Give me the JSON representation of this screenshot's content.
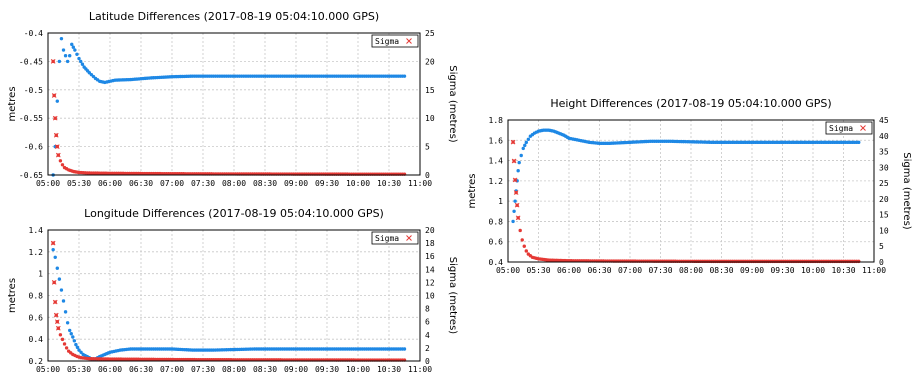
{
  "chart_data": [
    {
      "id": "latitude",
      "type": "scatter",
      "title": "Latitude Differences (2017-08-19 05:04:10.000 GPS)",
      "ylabel": "metres",
      "y2label": "Sigma (metres)",
      "legend": "Sigma",
      "legend_position": "top-right",
      "grid": true,
      "x_ticks": [
        "05:00",
        "05:30",
        "06:00",
        "06:30",
        "07:00",
        "07:30",
        "08:00",
        "08:30",
        "09:00",
        "09:30",
        "10:00",
        "10:30",
        "11:00"
      ],
      "xlim": [
        0,
        360
      ],
      "ylim": [
        -0.65,
        -0.4
      ],
      "y_ticks": [
        "-0.4",
        "-0.45",
        "-0.5",
        "-0.55",
        "-0.6",
        "-0.65"
      ],
      "y2lim": [
        0,
        25
      ],
      "y2_ticks": [
        "25",
        "20",
        "15",
        "10",
        "5",
        "0"
      ],
      "series": [
        {
          "color": "#1e88e5",
          "axis": "left",
          "points": [
            [
              5,
              -0.65
            ],
            [
              7,
              -0.6
            ],
            [
              9,
              -0.52
            ],
            [
              11,
              -0.45
            ],
            [
              13,
              -0.41
            ],
            [
              15,
              -0.43
            ],
            [
              17,
              -0.44
            ],
            [
              19,
              -0.45
            ],
            [
              21,
              -0.44
            ],
            [
              23,
              -0.42
            ],
            [
              26,
              -0.43
            ],
            [
              30,
              -0.445
            ],
            [
              35,
              -0.46
            ],
            [
              40,
              -0.47
            ],
            [
              46,
              -0.48
            ],
            [
              50,
              -0.485
            ],
            [
              55,
              -0.487
            ],
            [
              65,
              -0.483
            ],
            [
              80,
              -0.482
            ],
            [
              100,
              -0.479
            ],
            [
              120,
              -0.477
            ],
            [
              140,
              -0.476
            ],
            [
              160,
              -0.476
            ],
            [
              200,
              -0.476
            ],
            [
              250,
              -0.476
            ],
            [
              300,
              -0.476
            ],
            [
              345,
              -0.476
            ]
          ]
        },
        {
          "color": "#e53935",
          "axis": "right",
          "points": [
            [
              5,
              20
            ],
            [
              6,
              14
            ],
            [
              7,
              10
            ],
            [
              8,
              7
            ],
            [
              9,
              5
            ],
            [
              10,
              3.5
            ],
            [
              12,
              2.5
            ],
            [
              14,
              1.8
            ],
            [
              16,
              1.3
            ],
            [
              20,
              0.9
            ],
            [
              25,
              0.6
            ],
            [
              30,
              0.45
            ],
            [
              40,
              0.35
            ],
            [
              60,
              0.3
            ],
            [
              100,
              0.25
            ],
            [
              150,
              0.2
            ],
            [
              200,
              0.18
            ],
            [
              250,
              0.16
            ],
            [
              300,
              0.15
            ],
            [
              345,
              0.15
            ]
          ]
        }
      ]
    },
    {
      "id": "longitude",
      "type": "scatter",
      "title": "Longitude Differences (2017-08-19 05:04:10.000 GPS)",
      "ylabel": "metres",
      "y2label": "Sigma (metres)",
      "legend": "Sigma",
      "legend_position": "top-right",
      "grid": true,
      "x_ticks": [
        "05:00",
        "05:30",
        "06:00",
        "06:30",
        "07:00",
        "07:30",
        "08:00",
        "08:30",
        "09:00",
        "09:30",
        "10:00",
        "10:30",
        "11:00"
      ],
      "xlim": [
        0,
        360
      ],
      "ylim": [
        0.2,
        1.4
      ],
      "y_ticks": [
        "1.4",
        "1.2",
        "1",
        "0.8",
        "0.6",
        "0.4",
        "0.2"
      ],
      "y2lim": [
        0,
        20
      ],
      "y2_ticks": [
        "20",
        "18",
        "16",
        "14",
        "12",
        "10",
        "8",
        "6",
        "4",
        "2",
        "0"
      ],
      "series": [
        {
          "color": "#1e88e5",
          "axis": "left",
          "points": [
            [
              5,
              1.22
            ],
            [
              7,
              1.15
            ],
            [
              9,
              1.05
            ],
            [
              11,
              0.95
            ],
            [
              13,
              0.85
            ],
            [
              15,
              0.75
            ],
            [
              17,
              0.65
            ],
            [
              19,
              0.55
            ],
            [
              21,
              0.48
            ],
            [
              24,
              0.42
            ],
            [
              27,
              0.35
            ],
            [
              30,
              0.3
            ],
            [
              34,
              0.26
            ],
            [
              38,
              0.24
            ],
            [
              42,
              0.22
            ],
            [
              46,
              0.22
            ],
            [
              50,
              0.24
            ],
            [
              55,
              0.26
            ],
            [
              60,
              0.28
            ],
            [
              70,
              0.3
            ],
            [
              80,
              0.31
            ],
            [
              100,
              0.31
            ],
            [
              120,
              0.31
            ],
            [
              140,
              0.3
            ],
            [
              160,
              0.3
            ],
            [
              200,
              0.31
            ],
            [
              250,
              0.31
            ],
            [
              300,
              0.31
            ],
            [
              345,
              0.31
            ]
          ]
        },
        {
          "color": "#e53935",
          "axis": "right",
          "points": [
            [
              5,
              18
            ],
            [
              6,
              12
            ],
            [
              7,
              9
            ],
            [
              8,
              7
            ],
            [
              9,
              6
            ],
            [
              10,
              5
            ],
            [
              12,
              4
            ],
            [
              14,
              3.3
            ],
            [
              16,
              2.6
            ],
            [
              18,
              2
            ],
            [
              20,
              1.5
            ],
            [
              24,
              1
            ],
            [
              28,
              0.7
            ],
            [
              32,
              0.5
            ],
            [
              40,
              0.35
            ],
            [
              60,
              0.3
            ],
            [
              100,
              0.25
            ],
            [
              150,
              0.2
            ],
            [
              200,
              0.18
            ],
            [
              250,
              0.16
            ],
            [
              300,
              0.15
            ],
            [
              345,
              0.15
            ]
          ]
        }
      ]
    },
    {
      "id": "height",
      "type": "scatter",
      "title": "Height Differences (2017-08-19 05:04:10.000 GPS)",
      "ylabel": "metres",
      "y2label": "Sigma (metres)",
      "legend": "Sigma",
      "legend_position": "top-right",
      "grid": true,
      "x_ticks": [
        "05:00",
        "05:30",
        "06:00",
        "06:30",
        "07:00",
        "07:30",
        "08:00",
        "08:30",
        "09:00",
        "09:30",
        "10:00",
        "10:30",
        "11:00"
      ],
      "xlim": [
        0,
        360
      ],
      "ylim": [
        0.4,
        1.8
      ],
      "y_ticks": [
        "1.8",
        "1.6",
        "1.4",
        "1.2",
        "1",
        "0.8",
        "0.6",
        "0.4"
      ],
      "y2lim": [
        0,
        45
      ],
      "y2_ticks": [
        "45",
        "40",
        "35",
        "30",
        "25",
        "20",
        "15",
        "10",
        "5",
        "0"
      ],
      "series": [
        {
          "color": "#1e88e5",
          "axis": "left",
          "points": [
            [
              5,
              0.8
            ],
            [
              6,
              0.9
            ],
            [
              7,
              1.0
            ],
            [
              8,
              1.1
            ],
            [
              9,
              1.2
            ],
            [
              10,
              1.3
            ],
            [
              11,
              1.38
            ],
            [
              13,
              1.45
            ],
            [
              15,
              1.52
            ],
            [
              18,
              1.58
            ],
            [
              22,
              1.64
            ],
            [
              26,
              1.67
            ],
            [
              30,
              1.69
            ],
            [
              35,
              1.7
            ],
            [
              40,
              1.7
            ],
            [
              45,
              1.69
            ],
            [
              50,
              1.67
            ],
            [
              55,
              1.65
            ],
            [
              60,
              1.62
            ],
            [
              70,
              1.6
            ],
            [
              80,
              1.58
            ],
            [
              90,
              1.57
            ],
            [
              100,
              1.57
            ],
            [
              120,
              1.58
            ],
            [
              140,
              1.59
            ],
            [
              160,
              1.59
            ],
            [
              200,
              1.58
            ],
            [
              250,
              1.58
            ],
            [
              300,
              1.58
            ],
            [
              345,
              1.58
            ]
          ]
        },
        {
          "color": "#e53935",
          "axis": "right",
          "points": [
            [
              5,
              38
            ],
            [
              6,
              32
            ],
            [
              7,
              26
            ],
            [
              8,
              22
            ],
            [
              9,
              18
            ],
            [
              10,
              14
            ],
            [
              12,
              10
            ],
            [
              14,
              7
            ],
            [
              16,
              5
            ],
            [
              18,
              3.5
            ],
            [
              20,
              2.5
            ],
            [
              24,
              1.5
            ],
            [
              30,
              1
            ],
            [
              40,
              0.6
            ],
            [
              60,
              0.4
            ],
            [
              100,
              0.3
            ],
            [
              150,
              0.25
            ],
            [
              200,
              0.2
            ],
            [
              250,
              0.2
            ],
            [
              300,
              0.2
            ],
            [
              345,
              0.2
            ]
          ]
        }
      ]
    }
  ]
}
